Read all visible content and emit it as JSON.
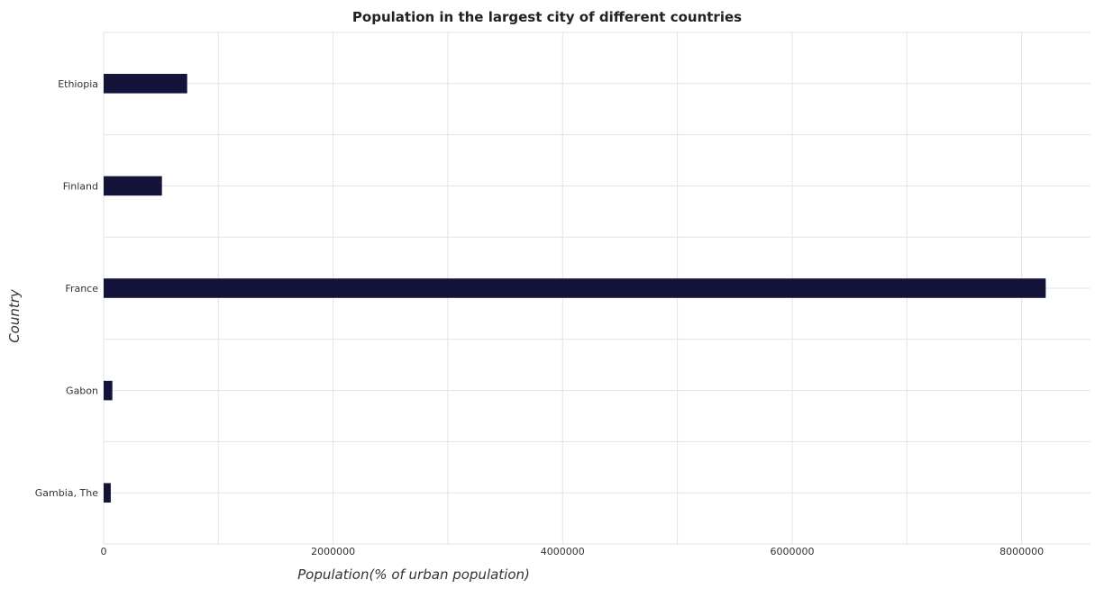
{
  "chart_data": {
    "type": "bar",
    "orientation": "horizontal",
    "title": "Population in the largest city of different countries",
    "xlabel": "Population(% of urban population)",
    "ylabel": "Country",
    "categories": [
      "Ethiopia",
      "Finland",
      "France",
      "Gabon",
      "Gambia, The"
    ],
    "values": [
      728000,
      508000,
      8210000,
      76000,
      62000
    ],
    "xlim": [
      0,
      8600000
    ],
    "xticks": [
      0,
      2000000,
      4000000,
      6000000,
      8000000
    ],
    "xtick_labels": [
      "0",
      "2000000",
      "4000000",
      "6000000",
      "8000000"
    ],
    "bar_color": "#14143a",
    "grid": true
  }
}
